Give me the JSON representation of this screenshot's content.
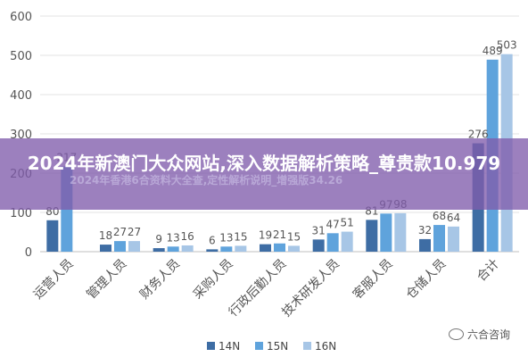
{
  "chart_data": {
    "type": "bar",
    "categories": [
      "运营人员",
      "管理人员",
      "财务人员",
      "采购人员",
      "行政后勤人员",
      "技术研发人员",
      "客服人员",
      "仓储人员",
      "合计"
    ],
    "series": [
      {
        "name": "14N",
        "color": "#3e6da4",
        "values": [
          80,
          18,
          9,
          6,
          19,
          31,
          81,
          32,
          276
        ]
      },
      {
        "name": "15N",
        "color": "#5fa3dc",
        "values": [
          217,
          27,
          13,
          13,
          21,
          47,
          97,
          68,
          489
        ]
      },
      {
        "name": "16N",
        "color": "#a7c6e6",
        "values": [
          null,
          27,
          16,
          15,
          15,
          51,
          98,
          64,
          503
        ]
      }
    ],
    "data_labels": [
      [
        "80",
        "217",
        ""
      ],
      [
        "18",
        "27",
        "27"
      ],
      [
        "9",
        "13",
        "16"
      ],
      [
        "6",
        "13",
        "15"
      ],
      [
        "19",
        "21",
        "15"
      ],
      [
        "31",
        "47",
        "51"
      ],
      [
        "81",
        "97",
        "98"
      ],
      [
        "32",
        "68",
        "64"
      ],
      [
        "276",
        "489",
        "503"
      ]
    ],
    "yticks": [
      "0",
      "100",
      "200",
      "300",
      "400",
      "500",
      "600"
    ],
    "ylim": [
      0,
      600
    ],
    "grid": true,
    "legend_position": "bottom"
  },
  "banner": {
    "title": "2024年新澳门大众网站,深入数据解析策略_尊贵款10.979",
    "subtitle": "2024年香港6合资料大全查,定性解析说明_增强版34.26"
  },
  "watermark": {
    "text": "六合咨询"
  }
}
